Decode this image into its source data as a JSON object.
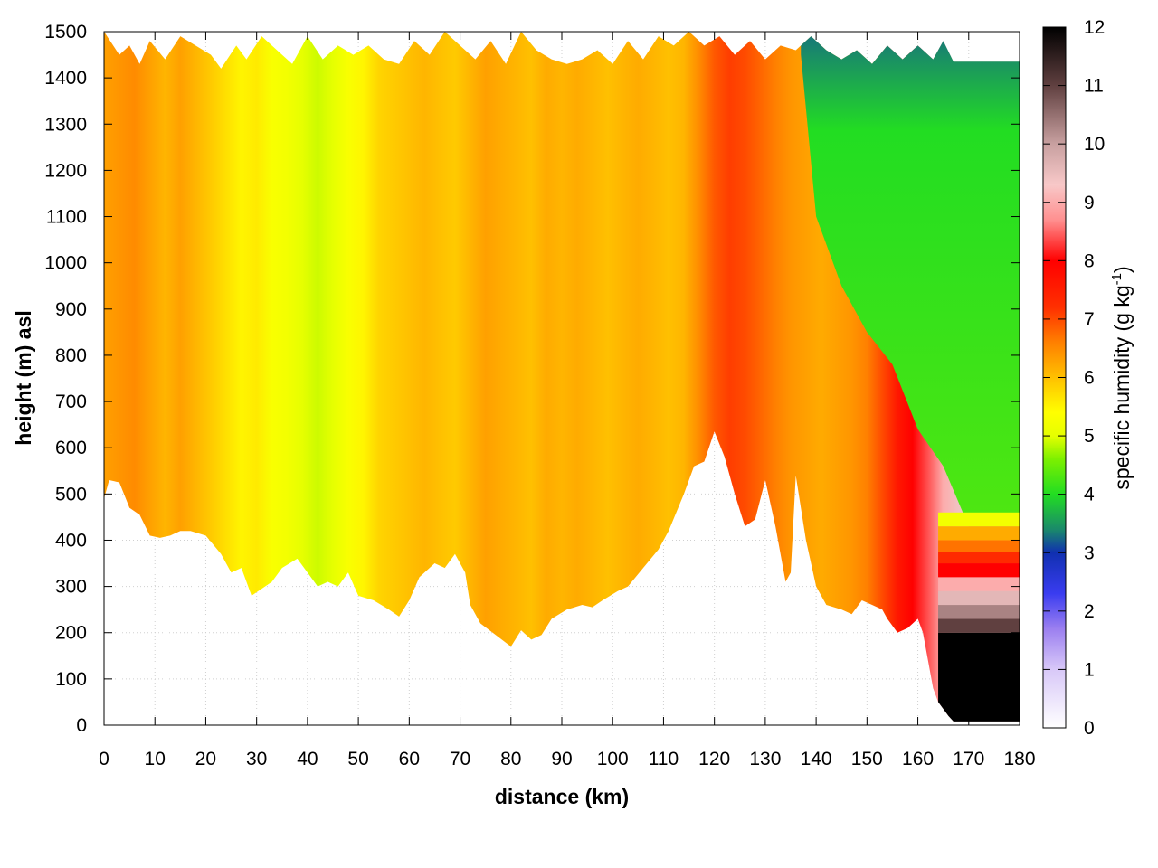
{
  "chart_data": {
    "type": "heatmap",
    "xlabel": "distance (km)",
    "ylabel": "height (m) asl",
    "xlim": [
      0,
      180
    ],
    "ylim": [
      0,
      1500
    ],
    "x_ticks": [
      "0",
      "10",
      "20",
      "30",
      "40",
      "50",
      "60",
      "70",
      "80",
      "90",
      "100",
      "110",
      "120",
      "130",
      "140",
      "150",
      "160",
      "170",
      "180"
    ],
    "y_ticks": [
      "0",
      "100",
      "200",
      "300",
      "400",
      "500",
      "600",
      "700",
      "800",
      "900",
      "1000",
      "1100",
      "1200",
      "1300",
      "1400",
      "1500"
    ],
    "grid": true,
    "colorbar": {
      "label_main": "specific humidity (g kg",
      "label_sup": "-1",
      "label_end": ")",
      "range": [
        0,
        12
      ],
      "ticks": [
        "0",
        "1",
        "2",
        "3",
        "4",
        "5",
        "6",
        "7",
        "8",
        "9",
        "10",
        "11",
        "12"
      ],
      "stops": [
        {
          "v": 0,
          "color": "#ffffff"
        },
        {
          "v": 1,
          "color": "#d8c8f8"
        },
        {
          "v": 1.7,
          "color": "#9b7ff0"
        },
        {
          "v": 2.3,
          "color": "#3a3cf0"
        },
        {
          "v": 3.0,
          "color": "#1030b0"
        },
        {
          "v": 3.4,
          "color": "#1a8a6a"
        },
        {
          "v": 4.0,
          "color": "#22dd22"
        },
        {
          "v": 4.6,
          "color": "#7cf000"
        },
        {
          "v": 5.0,
          "color": "#e6ff00"
        },
        {
          "v": 5.4,
          "color": "#ffff00"
        },
        {
          "v": 6.0,
          "color": "#ffc000"
        },
        {
          "v": 6.6,
          "color": "#ff8000"
        },
        {
          "v": 7.2,
          "color": "#ff3000"
        },
        {
          "v": 8.0,
          "color": "#ff0000"
        },
        {
          "v": 8.7,
          "color": "#ff9090"
        },
        {
          "v": 9.3,
          "color": "#f8c8c8"
        },
        {
          "v": 10.0,
          "color": "#c8a0a0"
        },
        {
          "v": 11.0,
          "color": "#604040"
        },
        {
          "v": 12.0,
          "color": "#000000"
        }
      ]
    },
    "columns": [
      {
        "x": 0,
        "v": 6.3
      },
      {
        "x": 3,
        "v": 6.4
      },
      {
        "x": 6,
        "v": 6.5
      },
      {
        "x": 9,
        "v": 6.3
      },
      {
        "x": 12,
        "v": 6.1
      },
      {
        "x": 15,
        "v": 6.3
      },
      {
        "x": 18,
        "v": 6.1
      },
      {
        "x": 21,
        "v": 5.9
      },
      {
        "x": 24,
        "v": 5.7
      },
      {
        "x": 27,
        "v": 5.5
      },
      {
        "x": 30,
        "v": 5.6
      },
      {
        "x": 33,
        "v": 5.3
      },
      {
        "x": 36,
        "v": 5.2
      },
      {
        "x": 39,
        "v": 5.0
      },
      {
        "x": 42,
        "v": 4.9
      },
      {
        "x": 45,
        "v": 5.0
      },
      {
        "x": 48,
        "v": 5.3
      },
      {
        "x": 51,
        "v": 5.5
      },
      {
        "x": 54,
        "v": 5.8
      },
      {
        "x": 57,
        "v": 5.9
      },
      {
        "x": 60,
        "v": 6.0
      },
      {
        "x": 63,
        "v": 6.1
      },
      {
        "x": 66,
        "v": 6.0
      },
      {
        "x": 69,
        "v": 5.9
      },
      {
        "x": 72,
        "v": 6.1
      },
      {
        "x": 75,
        "v": 6.3
      },
      {
        "x": 78,
        "v": 6.2
      },
      {
        "x": 81,
        "v": 6.1
      },
      {
        "x": 84,
        "v": 6.0
      },
      {
        "x": 87,
        "v": 6.2
      },
      {
        "x": 90,
        "v": 6.1
      },
      {
        "x": 93,
        "v": 6.2
      },
      {
        "x": 96,
        "v": 6.1
      },
      {
        "x": 99,
        "v": 6.0
      },
      {
        "x": 102,
        "v": 6.1
      },
      {
        "x": 105,
        "v": 6.2
      },
      {
        "x": 108,
        "v": 6.1
      },
      {
        "x": 111,
        "v": 6.0
      },
      {
        "x": 114,
        "v": 6.1
      },
      {
        "x": 117,
        "v": 6.5
      },
      {
        "x": 120,
        "v": 6.9
      },
      {
        "x": 123,
        "v": 7.1
      },
      {
        "x": 126,
        "v": 7.0
      },
      {
        "x": 129,
        "v": 6.8
      },
      {
        "x": 132,
        "v": 6.6
      },
      {
        "x": 135,
        "v": 6.4
      },
      {
        "x": 138,
        "v": 6.3
      },
      {
        "x": 141,
        "v": 6.2
      },
      {
        "x": 144,
        "v": 6.3
      },
      {
        "x": 147,
        "v": 6.4
      },
      {
        "x": 150,
        "v": 6.6
      },
      {
        "x": 153,
        "v": 7.0
      },
      {
        "x": 156,
        "v": 7.6
      },
      {
        "x": 159,
        "v": 8.0
      },
      {
        "x": 162,
        "v": 8.4
      },
      {
        "x": 165,
        "v": 9.0
      },
      {
        "x": 168,
        "v": 9.4
      },
      {
        "x": 171,
        "v": 9.5
      },
      {
        "x": 174,
        "v": 9.5
      },
      {
        "x": 177,
        "v": 9.5
      },
      {
        "x": 180,
        "v": 9.5
      }
    ],
    "dry_airmass": {
      "x": [
        137,
        140,
        145,
        150,
        155,
        160,
        165,
        170,
        175,
        180
      ],
      "front": [
        1450,
        1100,
        950,
        850,
        780,
        640,
        560,
        430,
        430,
        430
      ],
      "v_aloft": 4.0,
      "v_top": 3.3
    },
    "terrain_bottom": [
      {
        "x": 0,
        "y": 490
      },
      {
        "x": 1,
        "y": 530
      },
      {
        "x": 3,
        "y": 525
      },
      {
        "x": 5,
        "y": 470
      },
      {
        "x": 7,
        "y": 455
      },
      {
        "x": 9,
        "y": 410
      },
      {
        "x": 11,
        "y": 405
      },
      {
        "x": 13,
        "y": 410
      },
      {
        "x": 15,
        "y": 420
      },
      {
        "x": 17,
        "y": 420
      },
      {
        "x": 20,
        "y": 410
      },
      {
        "x": 23,
        "y": 370
      },
      {
        "x": 25,
        "y": 330
      },
      {
        "x": 27,
        "y": 340
      },
      {
        "x": 29,
        "y": 280
      },
      {
        "x": 31,
        "y": 295
      },
      {
        "x": 33,
        "y": 310
      },
      {
        "x": 35,
        "y": 340
      },
      {
        "x": 38,
        "y": 360
      },
      {
        "x": 40,
        "y": 330
      },
      {
        "x": 42,
        "y": 300
      },
      {
        "x": 44,
        "y": 310
      },
      {
        "x": 46,
        "y": 300
      },
      {
        "x": 48,
        "y": 330
      },
      {
        "x": 50,
        "y": 280
      },
      {
        "x": 53,
        "y": 270
      },
      {
        "x": 56,
        "y": 250
      },
      {
        "x": 58,
        "y": 235
      },
      {
        "x": 60,
        "y": 270
      },
      {
        "x": 62,
        "y": 320
      },
      {
        "x": 65,
        "y": 350
      },
      {
        "x": 67,
        "y": 340
      },
      {
        "x": 69,
        "y": 370
      },
      {
        "x": 71,
        "y": 330
      },
      {
        "x": 72,
        "y": 260
      },
      {
        "x": 74,
        "y": 220
      },
      {
        "x": 77,
        "y": 195
      },
      {
        "x": 80,
        "y": 170
      },
      {
        "x": 82,
        "y": 205
      },
      {
        "x": 84,
        "y": 185
      },
      {
        "x": 86,
        "y": 195
      },
      {
        "x": 88,
        "y": 230
      },
      {
        "x": 91,
        "y": 250
      },
      {
        "x": 94,
        "y": 260
      },
      {
        "x": 96,
        "y": 255
      },
      {
        "x": 98,
        "y": 270
      },
      {
        "x": 101,
        "y": 290
      },
      {
        "x": 103,
        "y": 300
      },
      {
        "x": 106,
        "y": 340
      },
      {
        "x": 109,
        "y": 380
      },
      {
        "x": 111,
        "y": 420
      },
      {
        "x": 114,
        "y": 500
      },
      {
        "x": 116,
        "y": 560
      },
      {
        "x": 118,
        "y": 570
      },
      {
        "x": 120,
        "y": 635
      },
      {
        "x": 122,
        "y": 580
      },
      {
        "x": 124,
        "y": 500
      },
      {
        "x": 126,
        "y": 430
      },
      {
        "x": 128,
        "y": 445
      },
      {
        "x": 130,
        "y": 530
      },
      {
        "x": 132,
        "y": 430
      },
      {
        "x": 134,
        "y": 310
      },
      {
        "x": 135,
        "y": 330
      },
      {
        "x": 136,
        "y": 540
      },
      {
        "x": 138,
        "y": 400
      },
      {
        "x": 140,
        "y": 300
      },
      {
        "x": 142,
        "y": 260
      },
      {
        "x": 145,
        "y": 250
      },
      {
        "x": 147,
        "y": 240
      },
      {
        "x": 149,
        "y": 270
      },
      {
        "x": 151,
        "y": 260
      },
      {
        "x": 153,
        "y": 250
      },
      {
        "x": 154,
        "y": 230
      },
      {
        "x": 156,
        "y": 200
      },
      {
        "x": 158,
        "y": 210
      },
      {
        "x": 160,
        "y": 230
      },
      {
        "x": 161,
        "y": 200
      },
      {
        "x": 162,
        "y": 140
      },
      {
        "x": 163,
        "y": 80
      },
      {
        "x": 164,
        "y": 50
      },
      {
        "x": 166,
        "y": 20
      },
      {
        "x": 167,
        "y": 8
      },
      {
        "x": 180,
        "y": 8
      }
    ],
    "data_top": [
      {
        "x": 0,
        "y": 1500
      },
      {
        "x": 3,
        "y": 1450
      },
      {
        "x": 5,
        "y": 1470
      },
      {
        "x": 7,
        "y": 1430
      },
      {
        "x": 9,
        "y": 1480
      },
      {
        "x": 12,
        "y": 1440
      },
      {
        "x": 15,
        "y": 1490
      },
      {
        "x": 18,
        "y": 1470
      },
      {
        "x": 21,
        "y": 1450
      },
      {
        "x": 23,
        "y": 1420
      },
      {
        "x": 26,
        "y": 1470
      },
      {
        "x": 28,
        "y": 1440
      },
      {
        "x": 31,
        "y": 1490
      },
      {
        "x": 34,
        "y": 1460
      },
      {
        "x": 37,
        "y": 1430
      },
      {
        "x": 40,
        "y": 1490
      },
      {
        "x": 43,
        "y": 1440
      },
      {
        "x": 46,
        "y": 1470
      },
      {
        "x": 49,
        "y": 1450
      },
      {
        "x": 52,
        "y": 1470
      },
      {
        "x": 55,
        "y": 1440
      },
      {
        "x": 58,
        "y": 1430
      },
      {
        "x": 61,
        "y": 1480
      },
      {
        "x": 64,
        "y": 1450
      },
      {
        "x": 67,
        "y": 1500
      },
      {
        "x": 70,
        "y": 1470
      },
      {
        "x": 73,
        "y": 1440
      },
      {
        "x": 76,
        "y": 1480
      },
      {
        "x": 79,
        "y": 1430
      },
      {
        "x": 82,
        "y": 1500
      },
      {
        "x": 85,
        "y": 1460
      },
      {
        "x": 88,
        "y": 1440
      },
      {
        "x": 91,
        "y": 1430
      },
      {
        "x": 94,
        "y": 1440
      },
      {
        "x": 97,
        "y": 1460
      },
      {
        "x": 100,
        "y": 1430
      },
      {
        "x": 103,
        "y": 1480
      },
      {
        "x": 106,
        "y": 1440
      },
      {
        "x": 109,
        "y": 1490
      },
      {
        "x": 112,
        "y": 1470
      },
      {
        "x": 115,
        "y": 1500
      },
      {
        "x": 118,
        "y": 1470
      },
      {
        "x": 121,
        "y": 1490
      },
      {
        "x": 124,
        "y": 1450
      },
      {
        "x": 127,
        "y": 1480
      },
      {
        "x": 130,
        "y": 1440
      },
      {
        "x": 133,
        "y": 1470
      },
      {
        "x": 136,
        "y": 1460
      },
      {
        "x": 139,
        "y": 1490
      },
      {
        "x": 142,
        "y": 1460
      },
      {
        "x": 145,
        "y": 1440
      },
      {
        "x": 148,
        "y": 1460
      },
      {
        "x": 151,
        "y": 1430
      },
      {
        "x": 154,
        "y": 1470
      },
      {
        "x": 157,
        "y": 1440
      },
      {
        "x": 160,
        "y": 1470
      },
      {
        "x": 163,
        "y": 1440
      },
      {
        "x": 165,
        "y": 1480
      },
      {
        "x": 167,
        "y": 1435
      },
      {
        "x": 180,
        "y": 1435
      }
    ],
    "surface_layers": {
      "x_start": 164,
      "x_end": 180,
      "layers": [
        {
          "y0": 0,
          "y1": 200,
          "v": 12
        },
        {
          "y0": 200,
          "y1": 230,
          "v": 11
        },
        {
          "y0": 230,
          "y1": 260,
          "v": 10.3
        },
        {
          "y0": 260,
          "y1": 290,
          "v": 9.6
        },
        {
          "y0": 290,
          "y1": 320,
          "v": 9.0
        },
        {
          "y0": 320,
          "y1": 350,
          "v": 8.0
        },
        {
          "y0": 350,
          "y1": 375,
          "v": 7.3
        },
        {
          "y0": 375,
          "y1": 400,
          "v": 6.7
        },
        {
          "y0": 400,
          "y1": 430,
          "v": 6.2
        },
        {
          "y0": 430,
          "y1": 460,
          "v": 5.2
        }
      ]
    }
  }
}
